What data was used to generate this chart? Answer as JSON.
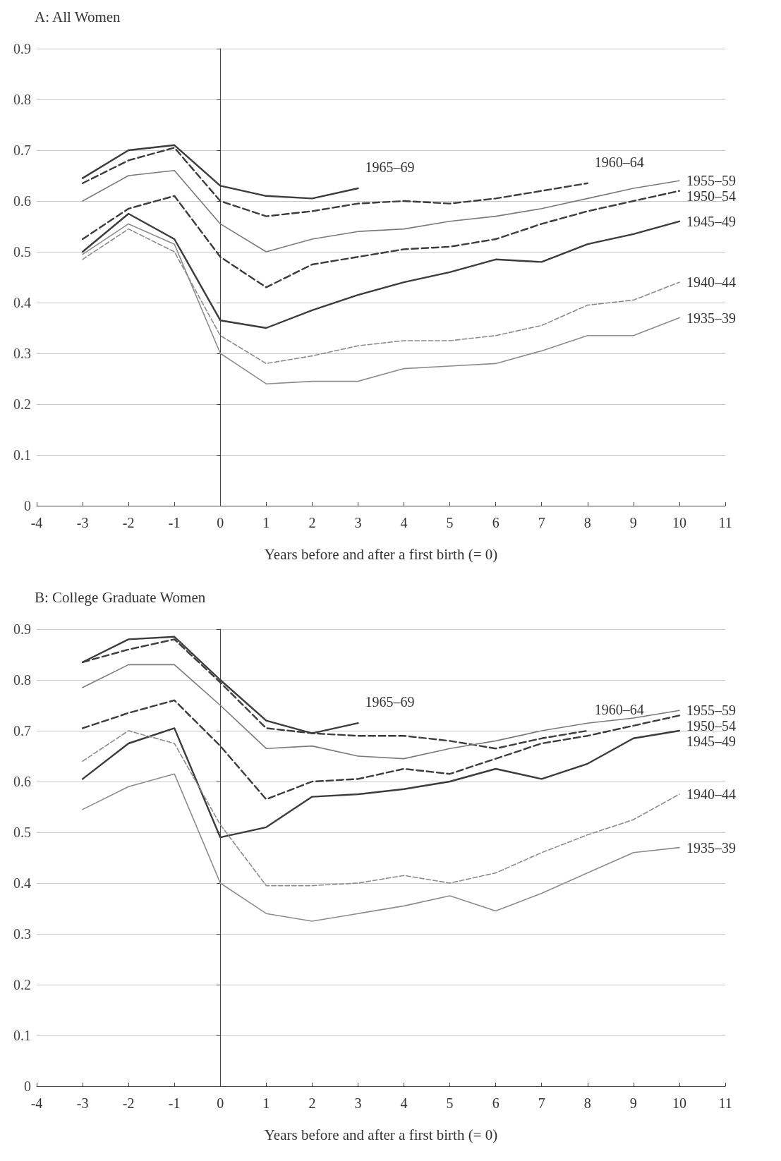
{
  "chart_data": [
    {
      "type": "line",
      "title": "A: All Women",
      "xlabel": "Years before and after a first birth (= 0)",
      "x": [
        -3,
        -2,
        -1,
        0,
        1,
        2,
        3,
        4,
        5,
        6,
        7,
        8,
        9,
        10
      ],
      "xlim": [
        -4,
        11
      ],
      "xticks": [
        -4,
        -3,
        -2,
        -1,
        0,
        1,
        2,
        3,
        4,
        5,
        6,
        7,
        8,
        9,
        10,
        11
      ],
      "ylim": [
        0,
        0.9
      ],
      "yticks": [
        0,
        0.1,
        0.2,
        0.3,
        0.4,
        0.5,
        0.6,
        0.7,
        0.8,
        0.9
      ],
      "grid": "y",
      "series": [
        {
          "name": "1965–69",
          "color": "#3c3c3c",
          "line_style": "solid",
          "x": [
            -3,
            -2,
            -1,
            0,
            1,
            2,
            3
          ],
          "values": [
            0.645,
            0.7,
            0.71,
            0.63,
            0.61,
            0.605,
            0.625
          ]
        },
        {
          "name": "1960–64",
          "color": "#3c3c3c",
          "line_style": "dashed",
          "x": [
            -3,
            -2,
            -1,
            0,
            1,
            2,
            3,
            4,
            5,
            6,
            7,
            8
          ],
          "values": [
            0.635,
            0.68,
            0.705,
            0.6,
            0.57,
            0.58,
            0.595,
            0.6,
            0.595,
            0.605,
            0.62,
            0.635
          ]
        },
        {
          "name": "1955–59",
          "color": "#7a7a7a",
          "line_style": "solid",
          "values": [
            0.6,
            0.65,
            0.66,
            0.555,
            0.5,
            0.525,
            0.54,
            0.545,
            0.56,
            0.57,
            0.585,
            0.605,
            0.625,
            0.64
          ]
        },
        {
          "name": "1950–54",
          "color": "#3c3c3c",
          "line_style": "dashed",
          "values": [
            0.525,
            0.585,
            0.61,
            0.49,
            0.43,
            0.475,
            0.49,
            0.505,
            0.51,
            0.525,
            0.555,
            0.58,
            0.6,
            0.62
          ]
        },
        {
          "name": "1945–49",
          "color": "#3c3c3c",
          "line_style": "solid",
          "values": [
            0.5,
            0.575,
            0.525,
            0.365,
            0.35,
            0.385,
            0.415,
            0.44,
            0.46,
            0.485,
            0.48,
            0.515,
            0.535,
            0.56
          ]
        },
        {
          "name": "1940–44",
          "color": "#8c8c8c",
          "line_style": "dashed",
          "values": [
            0.485,
            0.545,
            0.5,
            0.335,
            0.28,
            0.295,
            0.315,
            0.325,
            0.325,
            0.335,
            0.355,
            0.395,
            0.405,
            0.44
          ]
        },
        {
          "name": "1935–39",
          "color": "#8c8c8c",
          "line_style": "solid",
          "values": [
            0.495,
            0.555,
            0.515,
            0.3,
            0.24,
            0.245,
            0.245,
            0.27,
            0.275,
            0.28,
            0.305,
            0.335,
            0.335,
            0.37
          ]
        }
      ]
    },
    {
      "type": "line",
      "title": "B: College Graduate Women",
      "xlabel": "Years before and after a first birth (= 0)",
      "x": [
        -3,
        -2,
        -1,
        0,
        1,
        2,
        3,
        4,
        5,
        6,
        7,
        8,
        9,
        10
      ],
      "xlim": [
        -4,
        11
      ],
      "xticks": [
        -4,
        -3,
        -2,
        -1,
        0,
        1,
        2,
        3,
        4,
        5,
        6,
        7,
        8,
        9,
        10,
        11
      ],
      "ylim": [
        0,
        0.9
      ],
      "yticks": [
        0,
        0.1,
        0.2,
        0.3,
        0.4,
        0.5,
        0.6,
        0.7,
        0.8,
        0.9
      ],
      "grid": "y",
      "series": [
        {
          "name": "1965–69",
          "color": "#3c3c3c",
          "line_style": "solid",
          "x": [
            -3,
            -2,
            -1,
            0,
            1,
            2,
            3
          ],
          "values": [
            0.835,
            0.88,
            0.885,
            0.8,
            0.72,
            0.695,
            0.715
          ]
        },
        {
          "name": "1960–64",
          "color": "#3c3c3c",
          "line_style": "dashed",
          "x": [
            -3,
            -2,
            -1,
            0,
            1,
            2,
            3,
            4,
            5,
            6,
            7,
            8
          ],
          "values": [
            0.835,
            0.86,
            0.88,
            0.795,
            0.705,
            0.695,
            0.69,
            0.69,
            0.68,
            0.665,
            0.685,
            0.7
          ]
        },
        {
          "name": "1955–59",
          "color": "#7a7a7a",
          "line_style": "solid",
          "values": [
            0.785,
            0.83,
            0.83,
            0.75,
            0.665,
            0.67,
            0.65,
            0.645,
            0.665,
            0.68,
            0.7,
            0.715,
            0.725,
            0.74
          ]
        },
        {
          "name": "1950–54",
          "color": "#3c3c3c",
          "line_style": "dashed",
          "values": [
            0.705,
            0.735,
            0.76,
            0.67,
            0.565,
            0.6,
            0.605,
            0.625,
            0.615,
            0.645,
            0.675,
            0.69,
            0.71,
            0.73
          ]
        },
        {
          "name": "1945–49",
          "color": "#3c3c3c",
          "line_style": "solid",
          "values": [
            0.605,
            0.675,
            0.705,
            0.49,
            0.51,
            0.57,
            0.575,
            0.585,
            0.6,
            0.625,
            0.605,
            0.635,
            0.685,
            0.7
          ]
        },
        {
          "name": "1940–44",
          "color": "#8c8c8c",
          "line_style": "dashed",
          "values": [
            0.64,
            0.7,
            0.675,
            0.515,
            0.395,
            0.395,
            0.4,
            0.415,
            0.4,
            0.42,
            0.46,
            0.495,
            0.525,
            0.575
          ]
        },
        {
          "name": "1935–39",
          "color": "#8c8c8c",
          "line_style": "solid",
          "values": [
            0.545,
            0.59,
            0.615,
            0.4,
            0.34,
            0.325,
            0.34,
            0.355,
            0.375,
            0.345,
            0.38,
            0.42,
            0.46,
            0.47
          ]
        }
      ]
    }
  ]
}
